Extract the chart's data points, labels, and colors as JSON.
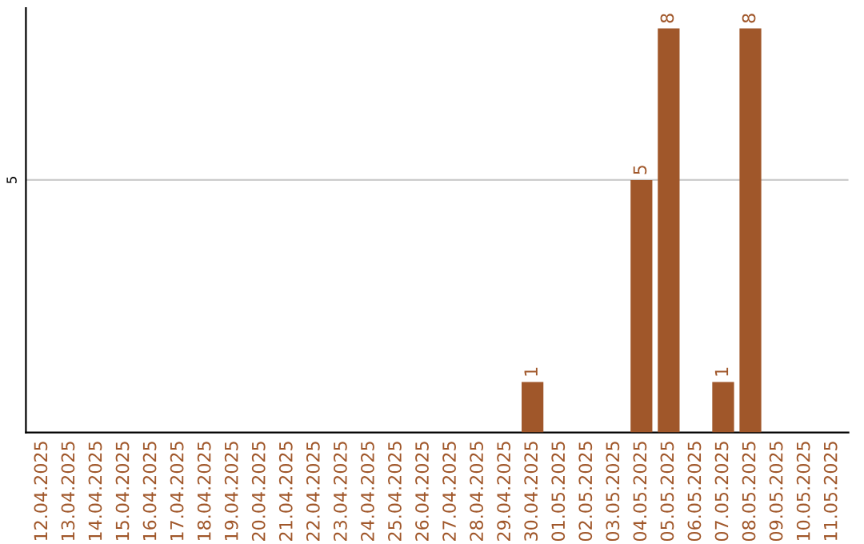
{
  "chart_data": {
    "type": "bar",
    "categories": [
      "12.04.2025",
      "13.04.2025",
      "14.04.2025",
      "15.04.2025",
      "16.04.2025",
      "17.04.2025",
      "18.04.2025",
      "19.04.2025",
      "20.04.2025",
      "21.04.2025",
      "22.04.2025",
      "23.04.2025",
      "24.04.2025",
      "25.04.2025",
      "26.04.2025",
      "27.04.2025",
      "28.04.2025",
      "29.04.2025",
      "30.04.2025",
      "01.05.2025",
      "02.05.2025",
      "03.05.2025",
      "04.05.2025",
      "05.05.2025",
      "06.05.2025",
      "07.05.2025",
      "08.05.2025",
      "09.05.2025",
      "10.05.2025",
      "11.05.2025"
    ],
    "values": [
      null,
      null,
      null,
      null,
      null,
      null,
      null,
      null,
      null,
      null,
      null,
      null,
      null,
      null,
      null,
      null,
      null,
      null,
      1,
      null,
      null,
      null,
      5,
      8,
      null,
      1,
      8,
      null,
      null,
      null
    ],
    "color": "#a0572a",
    "ylim": [
      0,
      8.4
    ],
    "yticks": [
      5
    ],
    "grid": "y",
    "data_labels": true
  }
}
